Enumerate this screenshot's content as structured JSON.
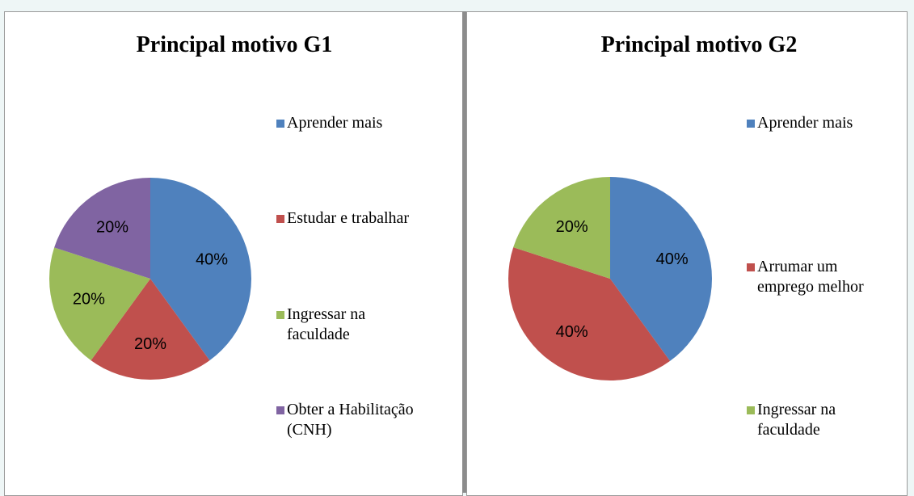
{
  "chart_data": [
    {
      "type": "pie",
      "title": "Principal motivo G1",
      "categories": [
        "Aprender mais",
        "Estudar e trabalhar",
        "Ingressar na\nfaculdade",
        "Obter a Habilitação\n(CNH)"
      ],
      "values": [
        40,
        20,
        20,
        20
      ],
      "value_labels": [
        "40%",
        "20%",
        "20%",
        "20%"
      ],
      "colors": [
        "#4f81bd",
        "#c0504d",
        "#9bbb59",
        "#8064a2"
      ],
      "legend": "right"
    },
    {
      "type": "pie",
      "title": "Principal motivo G2",
      "categories": [
        "Aprender mais",
        "Arrumar um\nemprego melhor",
        "Ingressar na\nfaculdade"
      ],
      "values": [
        40,
        40,
        20
      ],
      "value_labels": [
        "40%",
        "40%",
        "20%"
      ],
      "colors": [
        "#4f81bd",
        "#c0504d",
        "#9bbb59"
      ],
      "legend": "right"
    }
  ]
}
